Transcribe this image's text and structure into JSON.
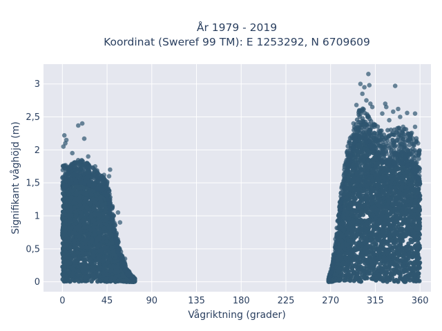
{
  "chart_data": {
    "type": "scatter",
    "title_line1": "År 1979 - 2019",
    "title_line2": "Koordinat (Sweref 99 TM): E 1253292, N 6709609",
    "xlabel": "Vågriktning (grader)",
    "ylabel": "Signifikant våghöjd (m)",
    "xlim": [
      -19,
      371
    ],
    "ylim": [
      -0.15,
      3.3
    ],
    "x_ticks": [
      0,
      45,
      90,
      135,
      180,
      225,
      270,
      315,
      360
    ],
    "x_tick_labels": [
      "0",
      "45",
      "90",
      "135",
      "180",
      "225",
      "270",
      "315",
      "360"
    ],
    "y_ticks": [
      0,
      0.5,
      1,
      1.5,
      2,
      2.5,
      3
    ],
    "y_tick_labels": [
      "0",
      "0,5",
      "1",
      "1,5",
      "2",
      "2,5",
      "3"
    ],
    "grid": true,
    "colors": {
      "marker": "#2f5670",
      "plot_bg": "#e5e7ef",
      "grid": "#ffffff",
      "text": "#2a3f5f"
    },
    "clusters": [
      {
        "name": "",
        "x_range": [
          0,
          73
        ],
        "envelope": [
          [
            0,
            1.8
          ],
          [
            5,
            1.75
          ],
          [
            10,
            1.8
          ],
          [
            15,
            1.85
          ],
          [
            20,
            1.85
          ],
          [
            25,
            1.8
          ],
          [
            30,
            1.75
          ],
          [
            35,
            1.7
          ],
          [
            40,
            1.6
          ],
          [
            45,
            1.55
          ],
          [
            50,
            1.2
          ],
          [
            55,
            0.7
          ],
          [
            60,
            0.4
          ],
          [
            65,
            0.2
          ],
          [
            70,
            0.1
          ],
          [
            73,
            0.05
          ]
        ],
        "core": [
          [
            0,
            1.4
          ],
          [
            10,
            1.5
          ],
          [
            20,
            1.5
          ],
          [
            30,
            1.45
          ],
          [
            40,
            1.35
          ],
          [
            45,
            1.3
          ],
          [
            50,
            0.9
          ],
          [
            55,
            0.5
          ],
          [
            60,
            0.25
          ],
          [
            65,
            0.12
          ],
          [
            70,
            0.05
          ]
        ]
      },
      {
        "name": "",
        "x_range": [
          268,
          360
        ],
        "envelope": [
          [
            268,
            0.05
          ],
          [
            272,
            0.3
          ],
          [
            276,
            0.8
          ],
          [
            280,
            1.3
          ],
          [
            284,
            1.8
          ],
          [
            288,
            2.1
          ],
          [
            292,
            2.3
          ],
          [
            296,
            2.5
          ],
          [
            300,
            2.65
          ],
          [
            305,
            2.6
          ],
          [
            310,
            2.5
          ],
          [
            315,
            2.4
          ],
          [
            320,
            2.35
          ],
          [
            330,
            2.3
          ],
          [
            340,
            2.35
          ],
          [
            350,
            2.3
          ],
          [
            356,
            2.2
          ],
          [
            360,
            2.0
          ]
        ],
        "core": [
          [
            268,
            0.02
          ],
          [
            272,
            0.2
          ],
          [
            276,
            0.6
          ],
          [
            280,
            1.1
          ],
          [
            285,
            1.6
          ],
          [
            290,
            1.9
          ],
          [
            295,
            2.1
          ],
          [
            300,
            2.2
          ],
          [
            310,
            2.05
          ],
          [
            320,
            1.85
          ],
          [
            330,
            1.75
          ],
          [
            340,
            1.8
          ],
          [
            350,
            1.75
          ],
          [
            360,
            1.5
          ]
        ]
      }
    ],
    "outliers": [
      {
        "x": 16,
        "y": 2.37
      },
      {
        "x": 20,
        "y": 2.4
      },
      {
        "x": 2,
        "y": 2.22
      },
      {
        "x": 4,
        "y": 2.15
      },
      {
        "x": 22,
        "y": 2.17
      },
      {
        "x": 1,
        "y": 2.05
      },
      {
        "x": 3,
        "y": 2.1
      },
      {
        "x": 33,
        "y": 1.75
      },
      {
        "x": 48,
        "y": 1.7
      },
      {
        "x": 47,
        "y": 1.6
      },
      {
        "x": 42,
        "y": 1.62
      },
      {
        "x": 38,
        "y": 1.58
      },
      {
        "x": 10,
        "y": 1.95
      },
      {
        "x": 26,
        "y": 1.9
      },
      {
        "x": 58,
        "y": 0.9
      },
      {
        "x": 56,
        "y": 1.05
      },
      {
        "x": 63,
        "y": 0.35
      },
      {
        "x": 70,
        "y": 0.08
      },
      {
        "x": 72,
        "y": 0.02
      },
      {
        "x": 308,
        "y": 3.15
      },
      {
        "x": 304,
        "y": 2.95
      },
      {
        "x": 302,
        "y": 2.85
      },
      {
        "x": 309,
        "y": 2.98
      },
      {
        "x": 300,
        "y": 3.0
      },
      {
        "x": 306,
        "y": 2.75
      },
      {
        "x": 310,
        "y": 2.7
      },
      {
        "x": 299,
        "y": 2.6
      },
      {
        "x": 312,
        "y": 2.65
      },
      {
        "x": 325,
        "y": 2.7
      },
      {
        "x": 326,
        "y": 2.65
      },
      {
        "x": 322,
        "y": 2.55
      },
      {
        "x": 335,
        "y": 2.97
      },
      {
        "x": 333,
        "y": 2.58
      },
      {
        "x": 338,
        "y": 2.62
      },
      {
        "x": 340,
        "y": 2.5
      },
      {
        "x": 347,
        "y": 2.56
      },
      {
        "x": 355,
        "y": 2.55
      },
      {
        "x": 329,
        "y": 2.45
      },
      {
        "x": 343,
        "y": 2.35
      },
      {
        "x": 355,
        "y": 2.35
      },
      {
        "x": 358,
        "y": 2.1
      },
      {
        "x": 293,
        "y": 2.4
      },
      {
        "x": 291,
        "y": 2.2
      },
      {
        "x": 296,
        "y": 2.68
      },
      {
        "x": 359,
        "y": 1.45
      },
      {
        "x": 359,
        "y": 1.3
      }
    ]
  }
}
